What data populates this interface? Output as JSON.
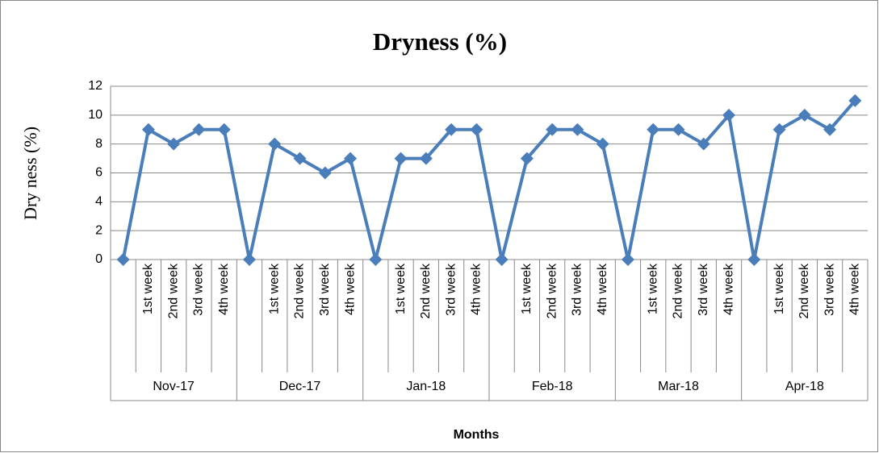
{
  "chart_data": {
    "type": "line",
    "title": "Dryness (%)",
    "y_label": "Dry ness (%)",
    "x_label": "Months",
    "categories": [
      null,
      "1st week",
      "2nd week",
      "3rd week",
      "4th week",
      null,
      "1st week",
      "2nd week",
      "3rd week",
      "4th week",
      null,
      "1st week",
      "2nd week",
      "3rd week",
      "4th week",
      null,
      "1st week",
      "2nd week",
      "3rd week",
      "4th week",
      null,
      "1st week",
      "2nd week",
      "3rd week",
      "4th week",
      null,
      "1st week",
      "2nd week",
      "3rd week",
      "4th week"
    ],
    "category_groups": [
      "Nov-17",
      "Dec-17",
      "Jan-18",
      "Feb-18",
      "Mar-18",
      "Apr-18"
    ],
    "values": [
      0,
      9,
      8,
      9,
      9,
      0,
      8,
      7,
      6,
      7,
      0,
      7,
      7,
      9,
      9,
      0,
      7,
      9,
      9,
      8,
      0,
      9,
      9,
      8,
      10,
      0,
      9,
      10,
      9,
      11
    ],
    "color": "#4a7ebb",
    "ylim": [
      0,
      12
    ],
    "yticks": [
      0,
      2,
      4,
      6,
      8,
      10,
      12
    ],
    "grid": true
  }
}
